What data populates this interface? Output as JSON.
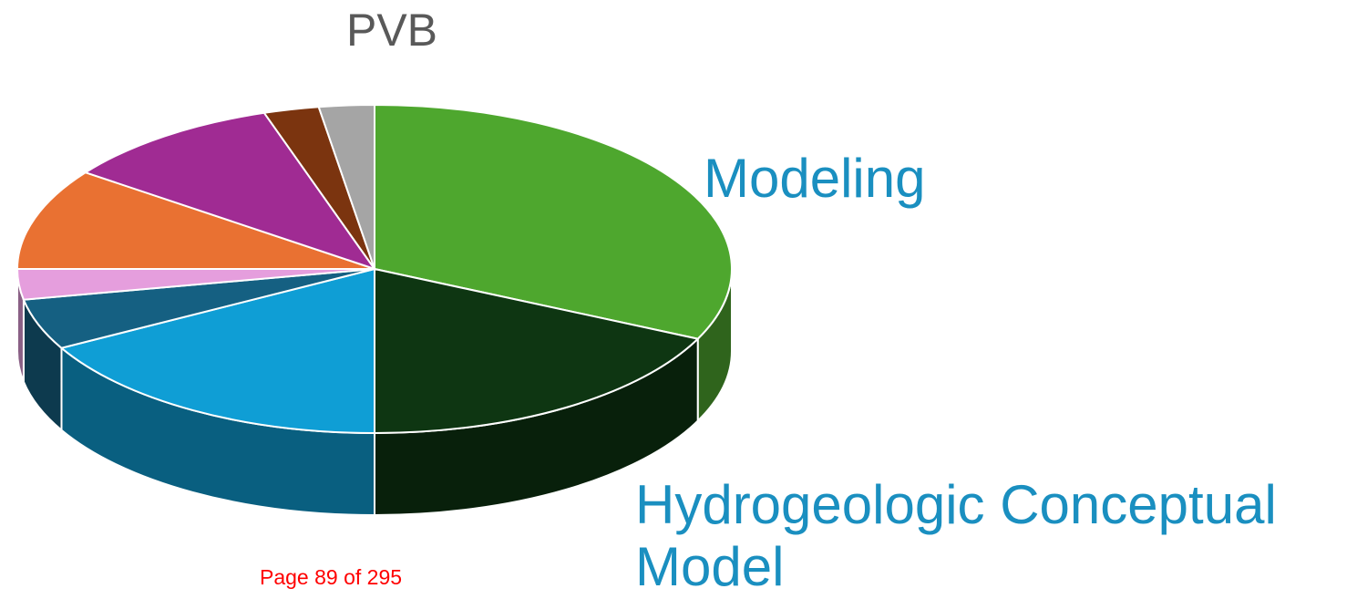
{
  "chart_data": {
    "type": "pie3d",
    "title": "PVB",
    "categories": [
      "Modeling",
      "Hydrogeologic Conceptual Model",
      null,
      null,
      null,
      null,
      null,
      null,
      null
    ],
    "values": [
      32,
      18,
      17,
      5,
      3,
      10,
      10,
      2.5,
      2.5
    ],
    "colors": [
      "#4ea72e",
      "#0e3612",
      "#0f9ed5",
      "#156082",
      "#e59edd",
      "#e97132",
      "#a02b93",
      "#7b340f",
      "#a5a5a5"
    ]
  },
  "footer": "Page 89 of 295"
}
